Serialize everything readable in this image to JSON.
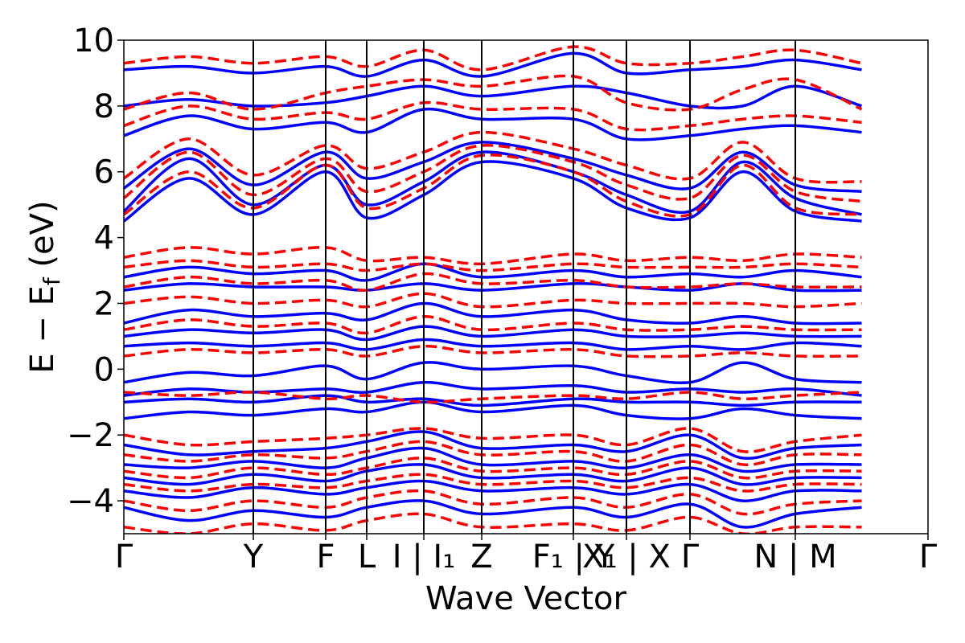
{
  "chart_data": {
    "type": "line",
    "title": "",
    "xlabel": "Wave Vector",
    "ylabel": "E − E_f (eV)",
    "ylabel_main": "E − E",
    "ylabel_sub": "f",
    "ylabel_unit": " (eV)",
    "ylim": [
      -5,
      10
    ],
    "yticks": [
      -4,
      -2,
      0,
      2,
      4,
      6,
      8,
      10
    ],
    "ytick_labels": [
      "−4",
      "−2",
      "0",
      "2",
      "4",
      "6",
      "8",
      "10"
    ],
    "grid": false,
    "legend": "none",
    "colors": {
      "solid": "#0000ff",
      "dashed": "#ff0000",
      "axes": "#000000"
    },
    "kpath": [
      {
        "label": "Γ",
        "pos": 0.0
      },
      {
        "label": "Y",
        "pos": 0.161
      },
      {
        "label": "F",
        "pos": 0.251
      },
      {
        "label": "L",
        "pos": 0.302
      },
      {
        "label": "I | I₁",
        "pos": 0.373
      },
      {
        "label": "Z",
        "pos": 0.445
      },
      {
        "label": "F₁ | Y",
        "pos": 0.559
      },
      {
        "label": "X₁ | X",
        "pos": 0.625
      },
      {
        "label": "Γ",
        "pos": 0.704
      },
      {
        "label": "N | M",
        "pos": 0.835
      },
      {
        "label": "Γ",
        "pos": 1.0
      }
    ],
    "series": [
      {
        "style": "solid",
        "color": "#0000ff",
        "bands": [
          [
            4.5,
            5.8,
            4.7,
            6.0,
            4.6,
            5.3,
            6.3,
            5.8,
            4.9,
            4.6,
            6.0,
            4.8,
            4.5
          ],
          [
            4.8,
            6.4,
            5.0,
            6.2,
            5.0,
            5.7,
            6.6,
            6.0,
            5.3,
            4.8,
            6.3,
            5.2,
            4.7
          ],
          [
            5.5,
            6.7,
            5.6,
            6.6,
            5.8,
            6.3,
            6.9,
            6.4,
            5.9,
            5.5,
            6.6,
            5.6,
            5.4
          ],
          [
            7.1,
            7.7,
            7.3,
            7.5,
            7.2,
            7.9,
            7.6,
            7.6,
            7.0,
            7.1,
            7.3,
            7.4,
            7.2
          ],
          [
            8.0,
            8.2,
            8.0,
            8.1,
            8.3,
            8.6,
            8.3,
            8.6,
            8.4,
            8.0,
            8.0,
            8.6,
            8.0
          ],
          [
            9.1,
            9.2,
            9.0,
            9.2,
            8.9,
            9.4,
            8.9,
            9.6,
            9.0,
            9.1,
            9.2,
            9.4,
            9.1
          ],
          [
            2.8,
            3.1,
            2.9,
            3.0,
            2.7,
            3.2,
            2.8,
            3.0,
            2.8,
            2.9,
            2.8,
            3.0,
            2.8
          ],
          [
            2.4,
            2.6,
            2.5,
            2.5,
            2.4,
            2.6,
            2.4,
            2.6,
            2.5,
            2.4,
            2.6,
            2.4,
            2.4
          ],
          [
            1.4,
            1.8,
            1.6,
            1.7,
            1.5,
            2.0,
            1.6,
            1.8,
            1.5,
            1.4,
            1.6,
            1.4,
            1.4
          ],
          [
            1.0,
            1.2,
            1.1,
            1.2,
            0.9,
            1.3,
            1.0,
            1.2,
            1.0,
            1.0,
            1.1,
            1.0,
            1.0
          ],
          [
            0.7,
            0.8,
            0.7,
            0.8,
            0.6,
            0.9,
            0.7,
            0.8,
            0.6,
            0.7,
            0.6,
            0.8,
            0.7
          ],
          [
            -0.4,
            -0.1,
            -0.2,
            0.1,
            -0.3,
            0.2,
            0.0,
            0.1,
            -0.2,
            -0.4,
            0.2,
            -0.3,
            -0.4
          ],
          [
            -0.8,
            -0.6,
            -0.7,
            -0.6,
            -0.7,
            -0.4,
            -0.6,
            -0.5,
            -0.7,
            -0.6,
            -0.7,
            -0.6,
            -0.8
          ],
          [
            -1.0,
            -0.9,
            -1.0,
            -0.8,
            -1.0,
            -0.9,
            -1.1,
            -0.9,
            -1.0,
            -1.0,
            -1.1,
            -1.0,
            -1.0
          ],
          [
            -1.5,
            -1.3,
            -1.4,
            -1.2,
            -1.3,
            -1.0,
            -1.3,
            -1.1,
            -1.4,
            -1.5,
            -1.2,
            -1.4,
            -1.5
          ],
          [
            -2.3,
            -2.6,
            -2.5,
            -2.4,
            -2.2,
            -1.9,
            -2.4,
            -2.3,
            -2.5,
            -2.0,
            -2.7,
            -2.4,
            -2.3
          ],
          [
            -2.9,
            -3.0,
            -2.8,
            -3.0,
            -2.7,
            -2.4,
            -2.9,
            -2.8,
            -3.0,
            -2.6,
            -3.1,
            -2.9,
            -2.9
          ],
          [
            -3.3,
            -3.5,
            -3.2,
            -3.4,
            -3.1,
            -2.9,
            -3.3,
            -3.2,
            -3.4,
            -3.0,
            -3.5,
            -3.3,
            -3.3
          ],
          [
            -3.7,
            -3.9,
            -3.6,
            -3.8,
            -3.6,
            -3.4,
            -3.7,
            -3.6,
            -3.8,
            -3.5,
            -4.0,
            -3.7,
            -3.7
          ],
          [
            -4.2,
            -4.6,
            -4.3,
            -4.5,
            -4.2,
            -4.0,
            -4.4,
            -4.2,
            -4.5,
            -4.1,
            -4.8,
            -4.4,
            -4.2
          ]
        ]
      },
      {
        "style": "dashed",
        "color": "#ff0000",
        "bands": [
          [
            4.7,
            6.0,
            4.9,
            6.2,
            4.9,
            5.5,
            6.5,
            6.0,
            5.1,
            4.7,
            6.2,
            4.9,
            4.7
          ],
          [
            5.2,
            6.6,
            5.3,
            6.4,
            5.4,
            6.0,
            6.8,
            6.3,
            5.6,
            5.2,
            6.5,
            5.4,
            5.1
          ],
          [
            5.8,
            7.0,
            5.9,
            6.8,
            6.1,
            6.6,
            7.2,
            6.7,
            6.2,
            5.8,
            6.9,
            5.8,
            5.7
          ],
          [
            7.4,
            8.0,
            7.6,
            7.8,
            7.6,
            8.1,
            7.9,
            7.9,
            7.3,
            7.4,
            7.6,
            7.7,
            7.5
          ],
          [
            7.9,
            8.4,
            7.9,
            8.4,
            8.6,
            8.8,
            8.6,
            8.9,
            8.1,
            7.9,
            8.5,
            8.8,
            7.9
          ],
          [
            9.3,
            9.5,
            9.3,
            9.5,
            9.2,
            9.7,
            9.1,
            9.8,
            9.3,
            9.3,
            9.5,
            9.7,
            9.3
          ],
          [
            3.4,
            3.7,
            3.5,
            3.7,
            3.3,
            3.4,
            3.2,
            3.5,
            3.3,
            3.4,
            3.3,
            3.5,
            3.4
          ],
          [
            3.1,
            3.3,
            3.1,
            3.2,
            3.0,
            3.2,
            3.0,
            3.2,
            3.1,
            3.1,
            3.1,
            3.2,
            3.1
          ],
          [
            2.5,
            2.8,
            2.6,
            2.7,
            2.4,
            2.9,
            2.6,
            2.7,
            2.5,
            2.5,
            2.6,
            2.5,
            2.5
          ],
          [
            2.0,
            2.2,
            2.0,
            2.1,
            1.9,
            2.3,
            1.9,
            2.1,
            2.0,
            2.0,
            2.0,
            1.9,
            2.0
          ],
          [
            1.2,
            1.5,
            1.3,
            1.4,
            1.1,
            1.6,
            1.2,
            1.4,
            1.2,
            1.2,
            1.3,
            1.2,
            1.2
          ],
          [
            0.4,
            0.6,
            0.5,
            0.6,
            0.4,
            0.7,
            0.5,
            0.6,
            0.4,
            0.4,
            0.5,
            0.4,
            0.4
          ],
          [
            -0.7,
            -0.8,
            -0.7,
            -0.9,
            -0.8,
            -1.0,
            -0.9,
            -0.8,
            -0.9,
            -0.7,
            -0.9,
            -0.8,
            -0.7
          ],
          [
            -2.0,
            -2.3,
            -2.2,
            -2.1,
            -2.0,
            -1.8,
            -2.1,
            -2.0,
            -2.3,
            -1.8,
            -2.5,
            -2.2,
            -2.0
          ],
          [
            -2.6,
            -2.8,
            -2.6,
            -2.7,
            -2.5,
            -2.2,
            -2.6,
            -2.5,
            -2.8,
            -2.3,
            -2.9,
            -2.6,
            -2.6
          ],
          [
            -3.1,
            -3.3,
            -3.0,
            -3.2,
            -3.0,
            -2.7,
            -3.1,
            -3.0,
            -3.2,
            -2.8,
            -3.3,
            -3.1,
            -3.1
          ],
          [
            -3.5,
            -3.7,
            -3.5,
            -3.6,
            -3.4,
            -3.2,
            -3.5,
            -3.4,
            -3.6,
            -3.3,
            -3.7,
            -3.5,
            -3.5
          ],
          [
            -4.0,
            -4.3,
            -4.0,
            -4.2,
            -3.9,
            -3.7,
            -4.1,
            -3.9,
            -4.2,
            -3.8,
            -4.4,
            -4.1,
            -4.0
          ],
          [
            -4.8,
            -5.0,
            -4.7,
            -4.9,
            -4.6,
            -4.4,
            -4.8,
            -4.7,
            -4.9,
            -4.5,
            -5.0,
            -4.8,
            -4.8
          ]
        ]
      }
    ]
  }
}
